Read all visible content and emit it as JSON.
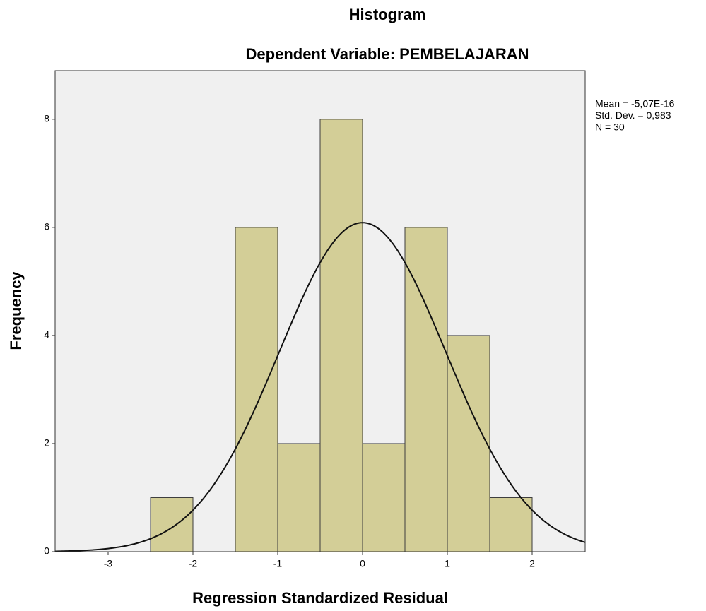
{
  "chart_data": {
    "type": "histogram",
    "title": "Histogram",
    "subtitle": "Dependent Variable: PEMBELAJARAN",
    "x_label": "Regression Standardized Residual",
    "y_label": "Frequency",
    "bins": [
      -2.5,
      -2,
      -1.5,
      -1,
      -0.5,
      0,
      0.5,
      1,
      1.5,
      2
    ],
    "values": [
      1,
      0,
      6,
      2,
      8,
      2,
      6,
      4,
      1
    ],
    "color": "#d3ce97",
    "xlim": [
      -3.625,
      2.625
    ],
    "ylim": [
      0,
      8.9
    ],
    "xticks": [
      -3,
      -2,
      -1,
      0,
      1,
      2
    ],
    "yticks": [
      0,
      2,
      4,
      6,
      8
    ],
    "normal_curve": {
      "mean": -5.07e-16,
      "sd": 0.983,
      "n": 30
    },
    "annotations": [
      "Mean = -5,07E-16",
      "Std. Dev. = 0,983",
      "N = 30"
    ]
  }
}
